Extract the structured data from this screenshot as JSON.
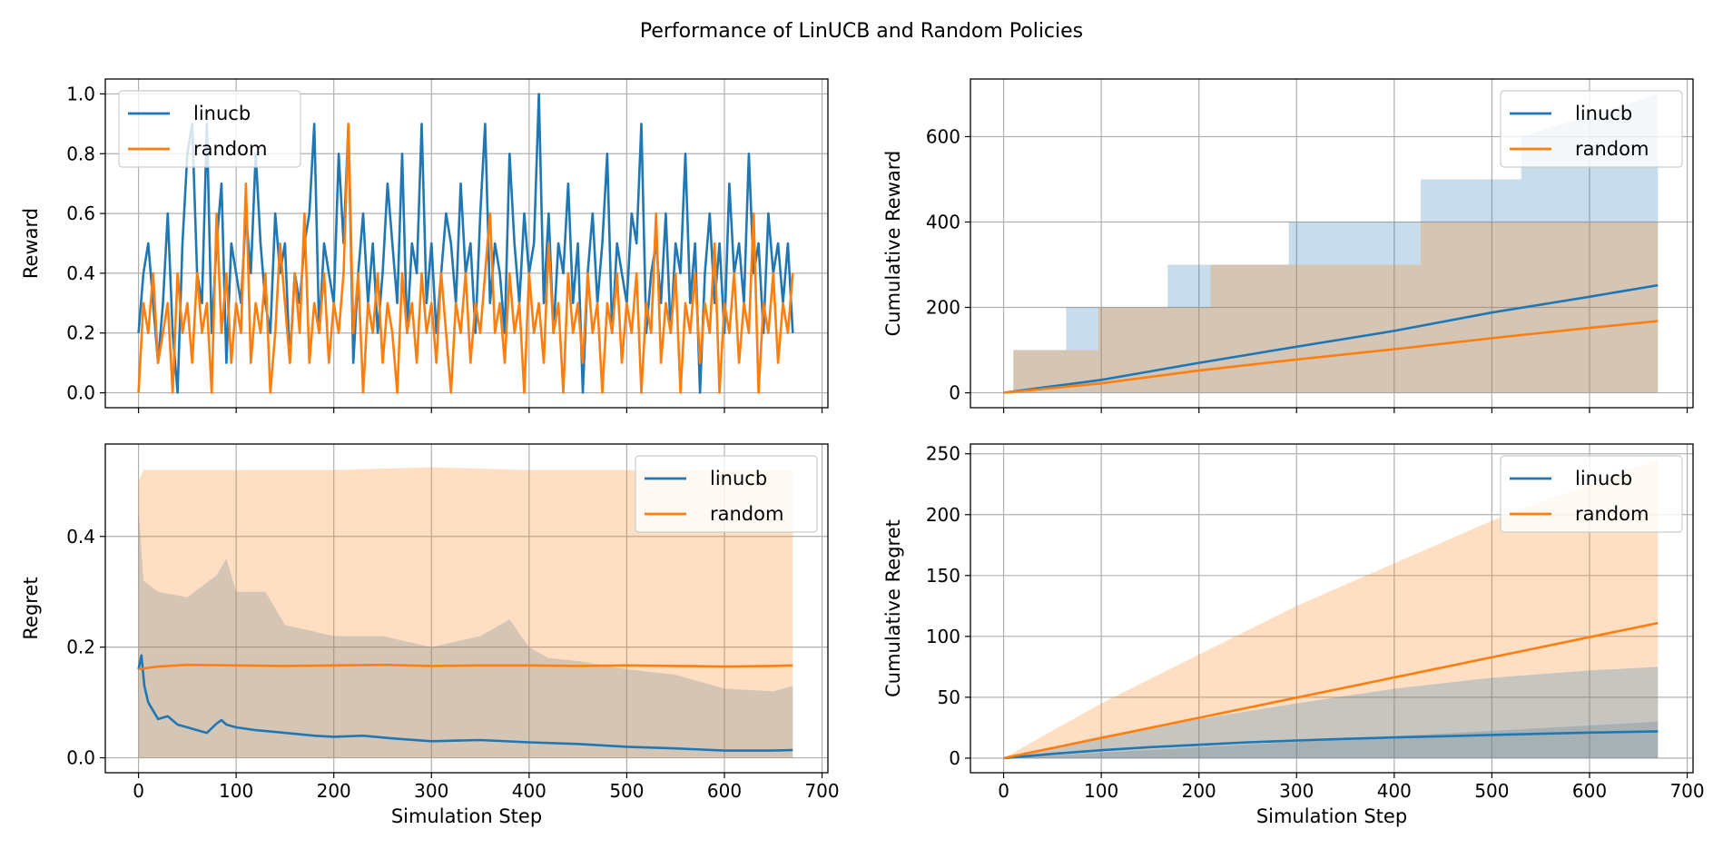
{
  "figure": {
    "title": "Performance of LinUCB and Random Policies"
  },
  "colors": {
    "linucb": "#1f77b4",
    "random": "#ff7f0e",
    "linucb_band": "#1f77b4",
    "random_band": "#ff7f0e",
    "grid": "#b0b0b0"
  },
  "chart_data": [
    {
      "id": "reward",
      "type": "line",
      "title": "",
      "xlabel": "",
      "ylabel": "Reward",
      "xlim": [
        -34,
        706
      ],
      "ylim": [
        -0.05,
        1.05
      ],
      "xticks": [
        0,
        100,
        200,
        300,
        400,
        500,
        600,
        700
      ],
      "yticks": [
        0.0,
        0.2,
        0.4,
        0.6,
        0.8,
        1.0
      ],
      "ytick_labels": [
        "0.0",
        "0.2",
        "0.4",
        "0.6",
        "0.8",
        "1.0"
      ],
      "xtick_labels_visible": false,
      "grid": true,
      "legend": "upper left",
      "series": [
        {
          "name": "linucb",
          "x_step": 5,
          "x_start": 0,
          "values": [
            0.2,
            0.4,
            0.5,
            0.3,
            0.1,
            0.3,
            0.6,
            0.2,
            0.0,
            0.5,
            0.8,
            0.9,
            0.4,
            0.3,
            0.9,
            0.2,
            0.5,
            0.7,
            0.1,
            0.5,
            0.4,
            0.3,
            0.6,
            0.4,
            0.8,
            0.5,
            0.3,
            0.2,
            0.6,
            0.4,
            0.5,
            0.1,
            0.4,
            0.3,
            0.5,
            0.6,
            0.9,
            0.2,
            0.5,
            0.4,
            0.3,
            0.8,
            0.5,
            0.9,
            0.1,
            0.4,
            0.6,
            0.3,
            0.5,
            0.2,
            0.4,
            0.7,
            0.5,
            0.3,
            0.8,
            0.2,
            0.5,
            0.4,
            0.9,
            0.3,
            0.5,
            0.2,
            0.4,
            0.6,
            0.5,
            0.3,
            0.7,
            0.4,
            0.5,
            0.2,
            0.6,
            0.9,
            0.3,
            0.5,
            0.4,
            0.2,
            0.8,
            0.5,
            0.3,
            0.6,
            0.4,
            0.5,
            1.0,
            0.3,
            0.6,
            0.2,
            0.5,
            0.4,
            0.7,
            0.3,
            0.5,
            0.0,
            0.4,
            0.6,
            0.3,
            0.5,
            0.8,
            0.2,
            0.5,
            0.4,
            0.3,
            0.6,
            0.5,
            0.9,
            0.2,
            0.4,
            0.5,
            0.3,
            0.6,
            0.2,
            0.5,
            0.4,
            0.8,
            0.3,
            0.5,
            0.0,
            0.4,
            0.6,
            0.3,
            0.5,
            0.2,
            0.7,
            0.4,
            0.5,
            0.3,
            0.8,
            0.4,
            0.5,
            0.2,
            0.6,
            0.4,
            0.5,
            0.3,
            0.5,
            0.2
          ]
        },
        {
          "name": "random",
          "x_step": 5,
          "x_start": 0,
          "values": [
            0.0,
            0.3,
            0.2,
            0.4,
            0.1,
            0.2,
            0.3,
            0.0,
            0.4,
            0.2,
            0.3,
            0.1,
            0.4,
            0.2,
            0.3,
            0.0,
            0.6,
            0.2,
            0.4,
            0.1,
            0.3,
            0.2,
            0.7,
            0.1,
            0.3,
            0.2,
            0.4,
            0.0,
            0.2,
            0.5,
            0.3,
            0.1,
            0.4,
            0.2,
            0.6,
            0.1,
            0.3,
            0.2,
            0.4,
            0.1,
            0.3,
            0.2,
            0.4,
            0.9,
            0.2,
            0.4,
            0.0,
            0.3,
            0.2,
            0.4,
            0.1,
            0.3,
            0.2,
            0.0,
            0.4,
            0.2,
            0.3,
            0.1,
            0.4,
            0.2,
            0.3,
            0.1,
            0.4,
            0.2,
            0.0,
            0.3,
            0.2,
            0.4,
            0.1,
            0.3,
            0.2,
            0.4,
            0.6,
            0.2,
            0.3,
            0.1,
            0.4,
            0.2,
            0.3,
            0.0,
            0.4,
            0.2,
            0.3,
            0.1,
            0.5,
            0.2,
            0.3,
            0.0,
            0.4,
            0.2,
            0.3,
            0.1,
            0.4,
            0.2,
            0.3,
            0.0,
            0.3,
            0.2,
            0.4,
            0.1,
            0.3,
            0.2,
            0.4,
            0.0,
            0.3,
            0.2,
            0.6,
            0.1,
            0.3,
            0.2,
            0.4,
            0.0,
            0.3,
            0.2,
            0.4,
            0.1,
            0.3,
            0.2,
            0.5,
            0.0,
            0.3,
            0.2,
            0.4,
            0.1,
            0.3,
            0.2,
            0.6,
            0.0,
            0.3,
            0.2,
            0.4,
            0.1,
            0.3,
            0.2,
            0.4
          ]
        }
      ]
    },
    {
      "id": "cumulative-reward",
      "type": "line",
      "title": "",
      "xlabel": "",
      "ylabel": "Cumulative Reward",
      "xlim": [
        -34,
        706
      ],
      "ylim": [
        -35,
        735
      ],
      "xticks": [
        0,
        100,
        200,
        300,
        400,
        500,
        600,
        700
      ],
      "yticks": [
        0,
        200,
        400,
        600
      ],
      "ytick_labels": [
        "0",
        "200",
        "400",
        "600"
      ],
      "xtick_labels_visible": false,
      "grid": true,
      "legend": "upper right",
      "series": [
        {
          "name": "linucb",
          "x": [
            0,
            100,
            200,
            300,
            400,
            500,
            600,
            670
          ],
          "values": [
            0,
            30,
            70,
            108,
            145,
            188,
            225,
            252
          ]
        },
        {
          "name": "random",
          "x": [
            0,
            100,
            200,
            300,
            400,
            500,
            600,
            670
          ],
          "values": [
            0,
            22,
            52,
            78,
            102,
            128,
            152,
            168
          ]
        }
      ],
      "bands": [
        {
          "series": "linucb",
          "x": [
            10,
            64,
            64,
            97,
            97,
            168,
            168,
            212,
            212,
            292,
            292,
            427,
            427,
            530,
            530,
            670
          ],
          "upper": [
            100,
            100,
            200,
            200,
            200,
            200,
            300,
            300,
            300,
            300,
            400,
            400,
            500,
            500,
            600,
            700
          ],
          "lower": [
            0,
            0,
            0,
            0,
            0,
            0,
            0,
            0,
            0,
            0,
            0,
            0,
            0,
            0,
            0,
            0
          ]
        },
        {
          "series": "random",
          "x": [
            10,
            97,
            97,
            212,
            212,
            427,
            427,
            670
          ],
          "upper": [
            100,
            100,
            200,
            200,
            300,
            300,
            400,
            400
          ],
          "lower": [
            0,
            0,
            0,
            0,
            0,
            0,
            0,
            0
          ]
        }
      ]
    },
    {
      "id": "regret",
      "type": "line",
      "title": "",
      "xlabel": "Simulation Step",
      "ylabel": "Regret",
      "xlim": [
        -34,
        706
      ],
      "ylim": [
        -0.027,
        0.567
      ],
      "xticks": [
        0,
        100,
        200,
        300,
        400,
        500,
        600,
        700
      ],
      "xtick_labels": [
        "0",
        "100",
        "200",
        "300",
        "400",
        "500",
        "600",
        "700"
      ],
      "yticks": [
        0.0,
        0.2,
        0.4
      ],
      "ytick_labels": [
        "0.0",
        "0.2",
        "0.4"
      ],
      "grid": true,
      "legend": "upper right",
      "series": [
        {
          "name": "linucb",
          "x": [
            0,
            3,
            6,
            10,
            15,
            20,
            30,
            40,
            50,
            60,
            70,
            80,
            85,
            90,
            100,
            120,
            150,
            180,
            200,
            230,
            260,
            300,
            350,
            400,
            450,
            500,
            550,
            600,
            650,
            670
          ],
          "values": [
            0.16,
            0.185,
            0.13,
            0.1,
            0.085,
            0.07,
            0.075,
            0.06,
            0.055,
            0.05,
            0.045,
            0.062,
            0.068,
            0.06,
            0.055,
            0.05,
            0.045,
            0.04,
            0.038,
            0.04,
            0.035,
            0.03,
            0.032,
            0.028,
            0.025,
            0.02,
            0.017,
            0.013,
            0.013,
            0.014
          ]
        },
        {
          "name": "random",
          "x": [
            0,
            20,
            50,
            100,
            150,
            200,
            250,
            300,
            350,
            400,
            450,
            500,
            550,
            600,
            650,
            670
          ],
          "values": [
            0.16,
            0.165,
            0.168,
            0.167,
            0.166,
            0.167,
            0.168,
            0.166,
            0.167,
            0.167,
            0.166,
            0.167,
            0.166,
            0.165,
            0.166,
            0.167
          ]
        }
      ],
      "bands": [
        {
          "series": "linucb",
          "x": [
            0,
            5,
            20,
            50,
            80,
            90,
            100,
            130,
            150,
            200,
            250,
            300,
            350,
            380,
            400,
            420,
            450,
            500,
            550,
            600,
            650,
            670
          ],
          "upper": [
            0.45,
            0.32,
            0.3,
            0.29,
            0.33,
            0.36,
            0.3,
            0.3,
            0.24,
            0.22,
            0.22,
            0.2,
            0.22,
            0.25,
            0.2,
            0.18,
            0.175,
            0.16,
            0.15,
            0.125,
            0.12,
            0.13
          ],
          "lower": [
            0,
            0,
            0,
            0,
            0,
            0,
            0,
            0,
            0,
            0,
            0,
            0,
            0,
            0,
            0,
            0,
            0,
            0,
            0,
            0,
            0,
            0
          ]
        },
        {
          "series": "random",
          "x": [
            0,
            5,
            100,
            200,
            300,
            400,
            500,
            600,
            670
          ],
          "upper": [
            0.5,
            0.52,
            0.52,
            0.52,
            0.525,
            0.52,
            0.52,
            0.52,
            0.52
          ],
          "lower": [
            0,
            0,
            0,
            0,
            0,
            0,
            0,
            0,
            0
          ]
        }
      ]
    },
    {
      "id": "cumulative-regret",
      "type": "line",
      "title": "",
      "xlabel": "Simulation Step",
      "ylabel": "Cumulative Regret",
      "xlim": [
        -34,
        706
      ],
      "ylim": [
        -12,
        258
      ],
      "xticks": [
        0,
        100,
        200,
        300,
        400,
        500,
        600,
        700
      ],
      "xtick_labels": [
        "0",
        "100",
        "200",
        "300",
        "400",
        "500",
        "600",
        "700"
      ],
      "yticks": [
        0,
        50,
        100,
        150,
        200,
        250
      ],
      "ytick_labels": [
        "0",
        "50",
        "100",
        "150",
        "200",
        "250"
      ],
      "grid": true,
      "legend": "upper right",
      "series": [
        {
          "name": "linucb",
          "x": [
            0,
            50,
            100,
            150,
            200,
            250,
            300,
            350,
            400,
            450,
            500,
            550,
            600,
            670
          ],
          "values": [
            0,
            3.5,
            6.5,
            9,
            11,
            13,
            14.5,
            15.8,
            17,
            18,
            19,
            20,
            21,
            22
          ]
        },
        {
          "name": "random",
          "x": [
            0,
            670
          ],
          "values": [
            0,
            111
          ]
        }
      ],
      "bands": [
        {
          "series": "linucb",
          "x": [
            0,
            670
          ],
          "upper": [
            0,
            30
          ],
          "lower": [
            0,
            0
          ]
        },
        {
          "series": "random",
          "x": [
            0,
            100,
            200,
            300,
            400,
            500,
            600,
            670
          ],
          "upper": [
            0,
            45,
            85,
            125,
            160,
            195,
            225,
            245
          ],
          "lower": [
            0,
            0,
            0,
            0,
            0,
            0,
            0,
            0
          ]
        },
        {
          "series": "linucb",
          "x": [
            0,
            100,
            200,
            300,
            400,
            500,
            600,
            670
          ],
          "upper": [
            0,
            18,
            32,
            45,
            57,
            66,
            72,
            75
          ],
          "lower": [
            0,
            0,
            0,
            0,
            0,
            0,
            0,
            0
          ],
          "mode": "overlap"
        }
      ]
    }
  ]
}
